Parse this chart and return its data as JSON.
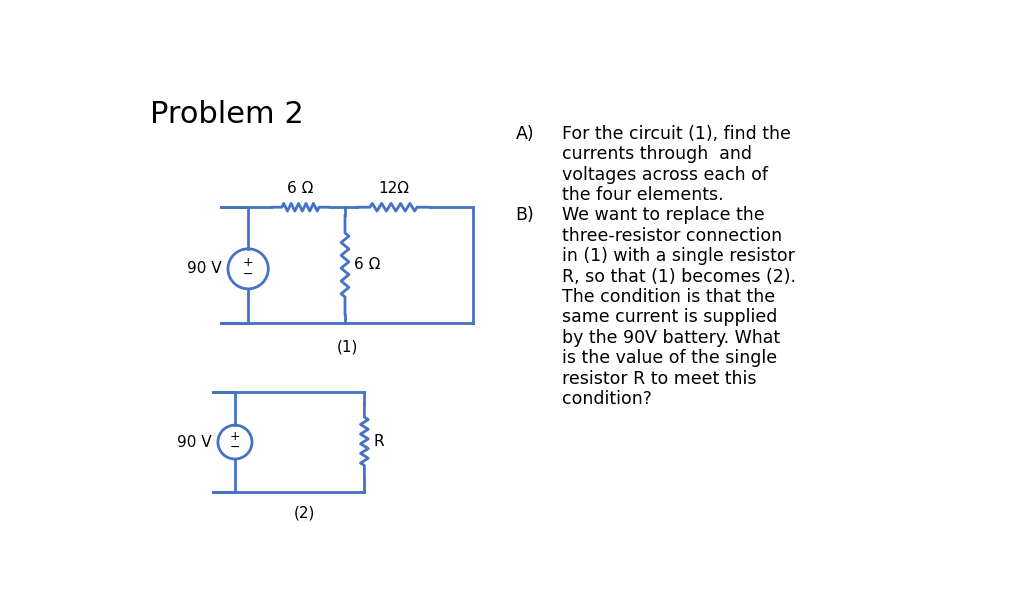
{
  "title": "Problem 2",
  "circuit_color": "#4472C4",
  "text_color": "#000000",
  "bg_color": "#ffffff",
  "line_width": 2.0,
  "title_fontsize": 22,
  "label_fontsize": 11,
  "text_fontsize": 12.5,
  "part_A_label": "A)",
  "part_B_label": "B)",
  "part_A_text_lines": [
    "For the circuit (1), find the",
    "currents through  and",
    "voltages across each of",
    "the four elements."
  ],
  "part_B_text_lines": [
    "We want to replace the",
    "three-resistor connection",
    "in (1) with a single resistor",
    "R, so that (1) becomes (2).",
    "The condition is that the",
    "same current is supplied",
    "by the 90V battery. What",
    "is the value of the single",
    "resistor R to meet this",
    "condition?"
  ],
  "circuit1_label": "(1)",
  "circuit2_label": "(2)",
  "voltage_label": "90 V",
  "r1_label": "6 Ω",
  "r2_label": "12Ω",
  "r3_label": "6 Ω",
  "r4_label": "R"
}
